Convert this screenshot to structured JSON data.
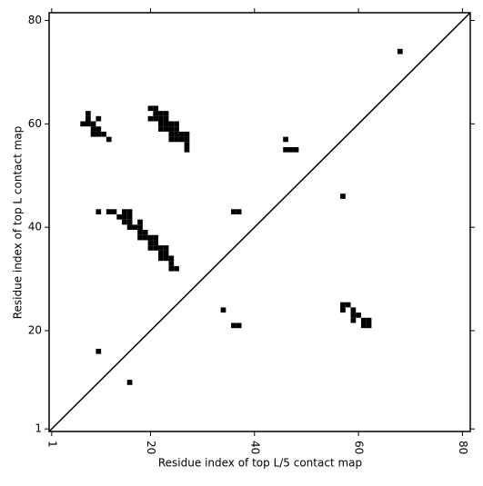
{
  "chart_data": {
    "type": "scatter",
    "marker": "square",
    "xlabel": "Residue index of top L/5 contact map",
    "ylabel": "Residue index of top L contact map",
    "xlim": [
      0.5,
      81.5
    ],
    "ylim": [
      0.5,
      81.5
    ],
    "xticks": [
      1,
      20,
      40,
      60,
      80
    ],
    "yticks": [
      1,
      20,
      40,
      60,
      80
    ],
    "diagonal": true,
    "series": [
      {
        "color": "#000000",
        "x": [
          68,
          57,
          46,
          46,
          47,
          48,
          36,
          37,
          34,
          36,
          37,
          16,
          10,
          57,
          58,
          57,
          59,
          59,
          60,
          59,
          61,
          62,
          61,
          62,
          8,
          8,
          7,
          8,
          9,
          10,
          9,
          10,
          9,
          10,
          11,
          12,
          20,
          21,
          21,
          22,
          23,
          20,
          21,
          22,
          23,
          22,
          23,
          24,
          25,
          22,
          23,
          24,
          25,
          24,
          25,
          26,
          27,
          24,
          25,
          26,
          27,
          27,
          27,
          10,
          12,
          13,
          15,
          16,
          14,
          15,
          16,
          15,
          16,
          18,
          16,
          17,
          18,
          18,
          19,
          18,
          19,
          20,
          21,
          20,
          21,
          20,
          21,
          22,
          23,
          22,
          23,
          22,
          23,
          24,
          24,
          24,
          25
        ],
        "y": [
          74,
          46,
          57,
          55,
          55,
          55,
          43,
          43,
          24,
          21,
          21,
          10,
          16,
          25,
          25,
          24,
          24,
          23,
          23,
          22,
          22,
          22,
          21,
          21,
          62,
          61,
          60,
          60,
          60,
          61,
          59,
          59,
          58,
          58,
          58,
          57,
          63,
          63,
          62,
          62,
          62,
          61,
          61,
          61,
          61,
          60,
          60,
          60,
          60,
          59,
          59,
          59,
          59,
          58,
          58,
          58,
          58,
          57,
          57,
          57,
          57,
          56,
          55,
          43,
          43,
          43,
          43,
          43,
          42,
          42,
          42,
          41,
          41,
          41,
          40,
          40,
          40,
          39,
          39,
          38,
          38,
          38,
          38,
          37,
          37,
          36,
          36,
          36,
          36,
          35,
          35,
          34,
          34,
          34,
          33,
          32,
          32
        ]
      }
    ]
  }
}
